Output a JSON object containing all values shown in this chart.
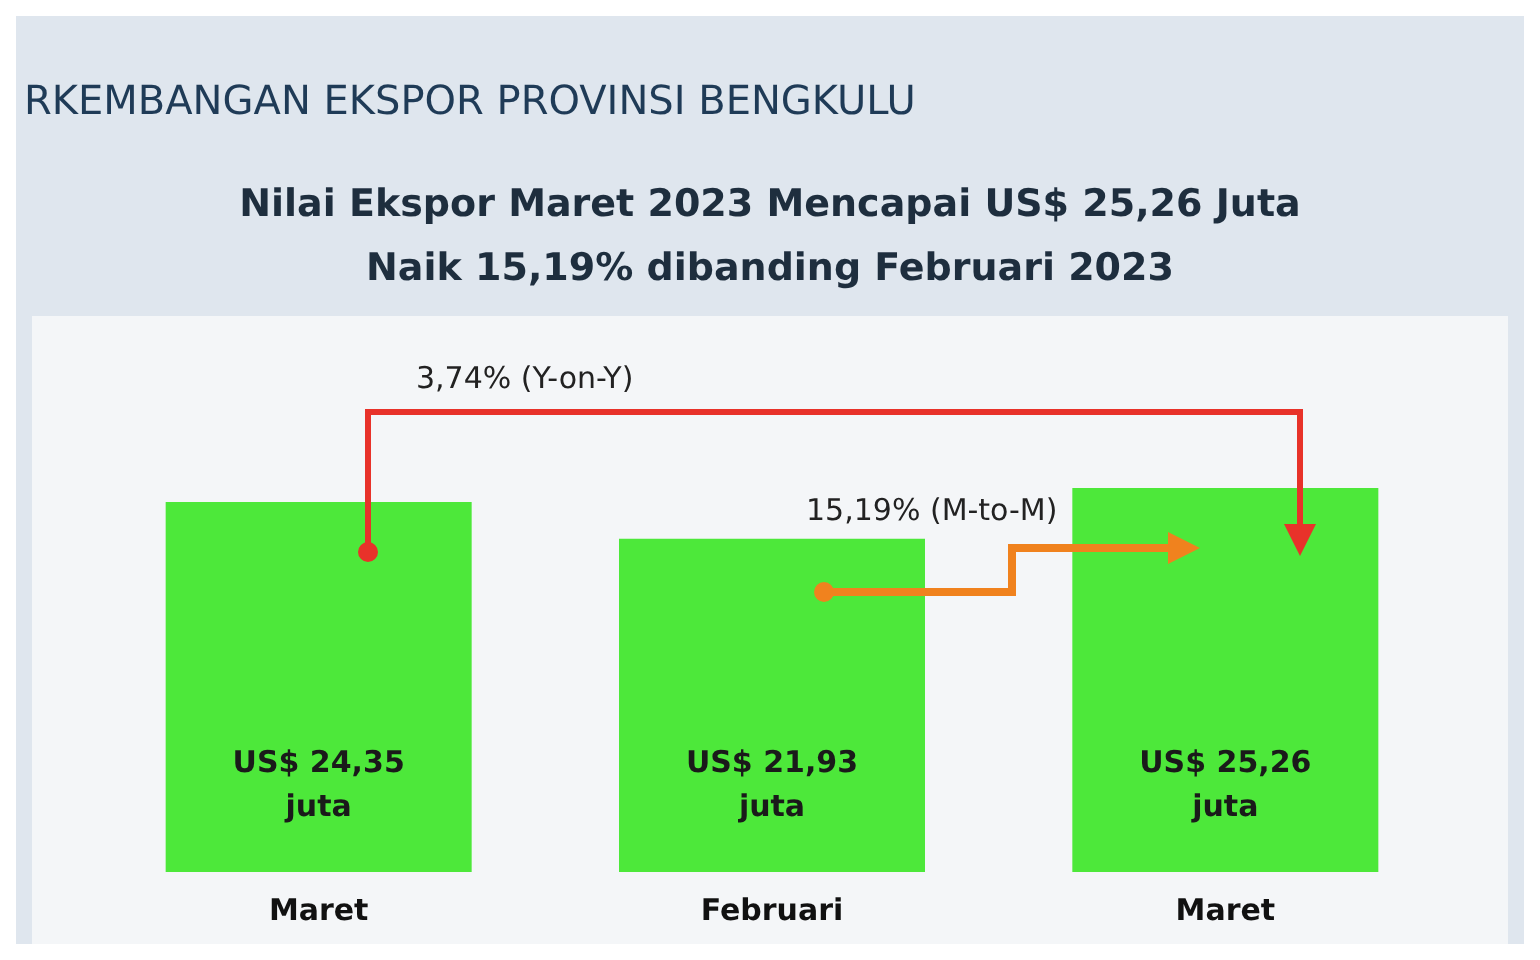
{
  "chart_data": {
    "type": "bar",
    "title": "RKEMBANGAN EKSPOR PROVINSI BENGKULU",
    "subtitle": "Nilai Ekspor Maret 2023 Mencapai US$ 25,26 Juta\nNaik 15,19% dibanding Februari 2023",
    "categories": [
      "Maret",
      "Februari",
      "Maret"
    ],
    "values": [
      24.35,
      21.93,
      25.26
    ],
    "value_labels": [
      "US$ 24,35 juta",
      "US$ 21,93 juta",
      "US$ 25,26 juta"
    ],
    "color": "#4de83a",
    "annotations": [
      "3,74% (Y-on-Y)",
      "15,19% (M-to-M)"
    ],
    "legend": false,
    "grid": false
  }
}
